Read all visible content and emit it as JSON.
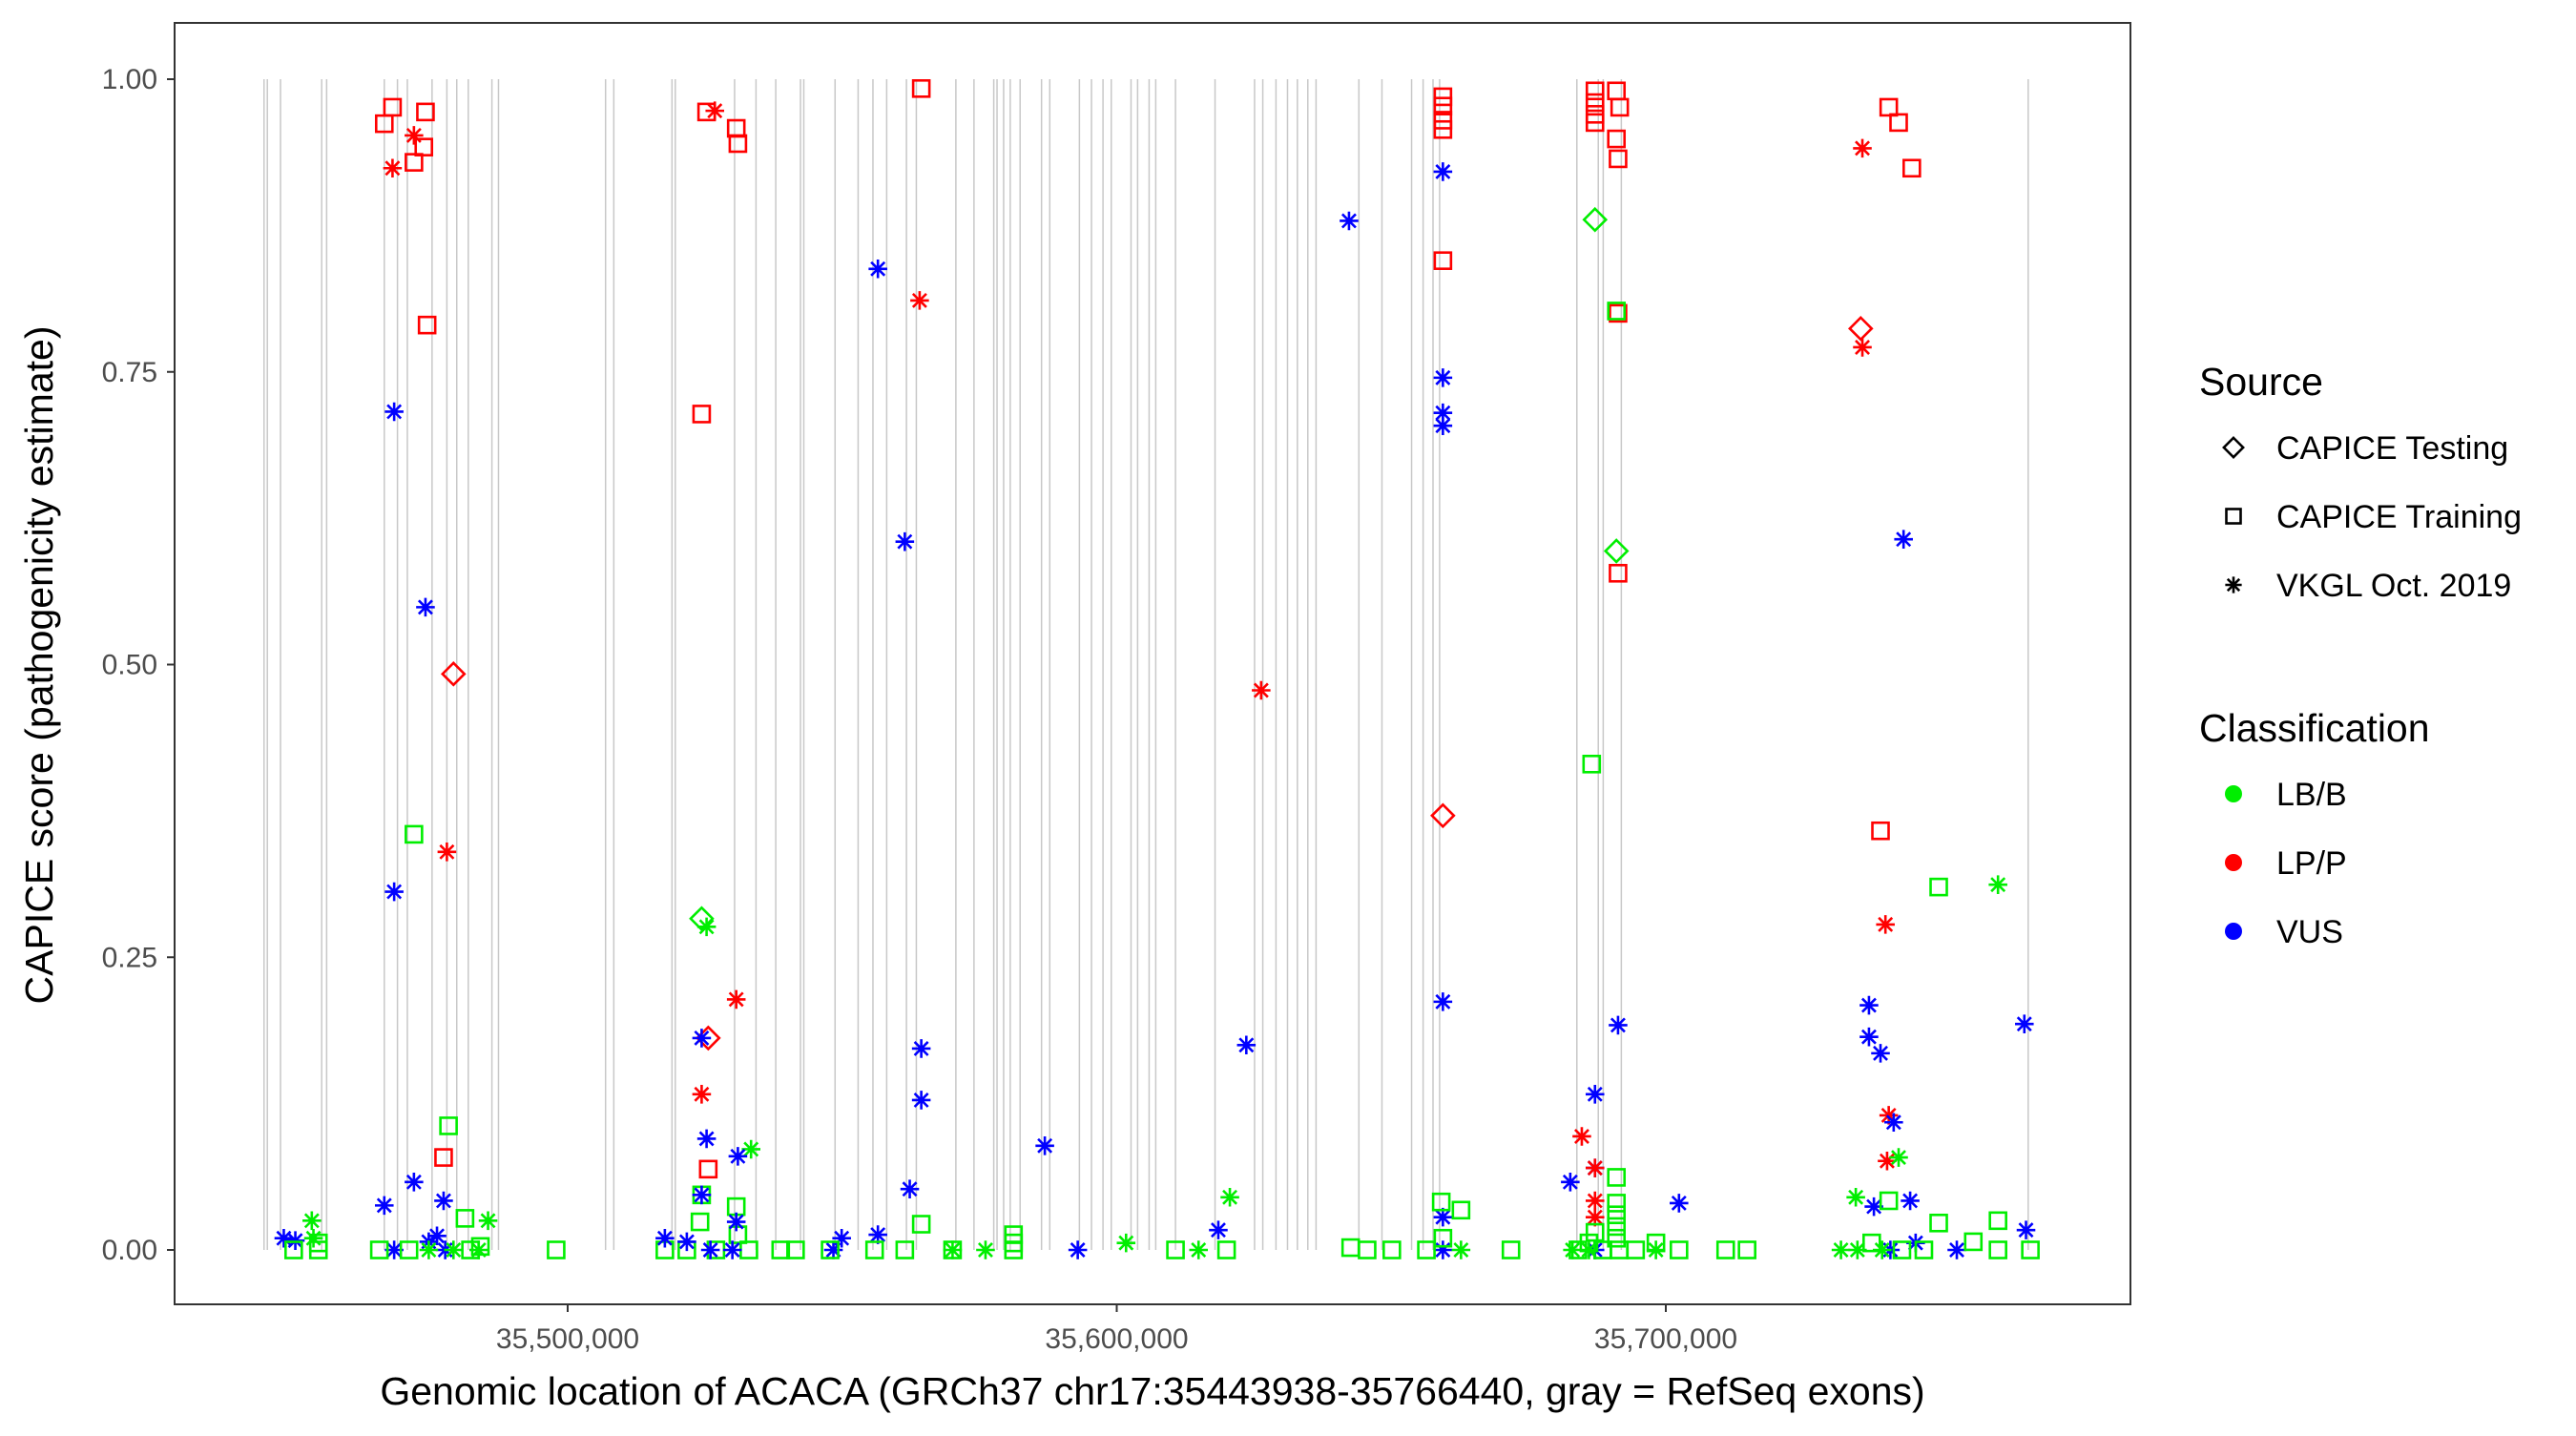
{
  "chart_data": {
    "type": "scatter",
    "title": "",
    "xlabel": "Genomic location of ACACA (GRCh37 chr17:35443938-35766440, gray = RefSeq exons)",
    "ylabel": "CAPICE score (pathogenicity estimate)",
    "xlim_kb": [
      35443.938,
      35766.44
    ],
    "ylim": [
      0,
      1
    ],
    "x_ticks": [
      {
        "value": 35500,
        "label": "35,500,000"
      },
      {
        "value": 35600,
        "label": "35,600,000"
      },
      {
        "value": 35700,
        "label": "35,700,000"
      }
    ],
    "y_ticks": [
      {
        "value": 0,
        "label": "0.00"
      },
      {
        "value": 0.25,
        "label": "0.25"
      },
      {
        "value": 0.5,
        "label": "0.50"
      },
      {
        "value": 0.75,
        "label": "0.75"
      },
      {
        "value": 1,
        "label": "1.00"
      }
    ],
    "grid": false,
    "legend_placement": "right",
    "legend": {
      "source_title": "Source",
      "sources": [
        {
          "key": "T",
          "label": "CAPICE Testing",
          "shape": "diamond"
        },
        {
          "key": "R",
          "label": "CAPICE Training",
          "shape": "square"
        },
        {
          "key": "V",
          "label": "VKGL Oct. 2019",
          "shape": "asterisk"
        }
      ],
      "class_title": "Classification",
      "classes": [
        {
          "key": "B",
          "label": "LB/B",
          "color": "#00EE00"
        },
        {
          "key": "P",
          "label": "LP/P",
          "color": "#FF0000"
        },
        {
          "key": "U",
          "label": "VUS",
          "color": "#0000FF"
        }
      ]
    },
    "exons_kb": [
      35444.7,
      35445.3,
      35447.7,
      35455.2,
      35456.1,
      35466.6,
      35469.0,
      35470.8,
      35475.3,
      35478.0,
      35479.8,
      35481.9,
      35486.2,
      35487.4,
      35506.9,
      35508.4,
      35519.0,
      35519.6,
      35530.4,
      35534.3,
      35537.9,
      35542.4,
      35543.0,
      35548.7,
      35552.9,
      35555.6,
      35558.1,
      35561.7,
      35563.5,
      35570.7,
      35574.0,
      35577.6,
      35578.2,
      35579.4,
      35580.6,
      35582.4,
      35586.3,
      35587.8,
      35593.2,
      35595.4,
      35597.5,
      35599.0,
      35602.6,
      35603.8,
      35605.9,
      35607.1,
      35610.7,
      35617.9,
      35625.1,
      35626.6,
      35629.0,
      35631.1,
      35632.9,
      35634.8,
      35636.3,
      35644.1,
      35648.3,
      35653.7,
      35655.8,
      35657.6,
      35658.8,
      35683.8,
      35687.7,
      35688.6,
      35691.9,
      35766.0
    ],
    "points_fields": [
      "x_kb",
      "score",
      "source",
      "classification"
    ],
    "points": [
      [
        35466.6,
        0.962,
        "R",
        "P"
      ],
      [
        35468.1,
        0.976,
        "R",
        "P"
      ],
      [
        35474.1,
        0.972,
        "R",
        "P"
      ],
      [
        35472.0,
        0.929,
        "R",
        "P"
      ],
      [
        35473.8,
        0.942,
        "R",
        "P"
      ],
      [
        35474.4,
        0.79,
        "R",
        "P"
      ],
      [
        35477.4,
        0.079,
        "R",
        "P"
      ],
      [
        35468.1,
        0.924,
        "V",
        "P"
      ],
      [
        35472.0,
        0.952,
        "V",
        "P"
      ],
      [
        35478.0,
        0.34,
        "V",
        "P"
      ],
      [
        35479.2,
        0.492,
        "T",
        "P"
      ],
      [
        35468.4,
        0.716,
        "V",
        "U"
      ],
      [
        35474.1,
        0.549,
        "V",
        "U"
      ],
      [
        35468.4,
        0.306,
        "V",
        "U"
      ],
      [
        35472.0,
        0.058,
        "V",
        "U"
      ],
      [
        35466.6,
        0.038,
        "V",
        "U"
      ],
      [
        35477.4,
        0.042,
        "V",
        "U"
      ],
      [
        35448.3,
        0.01,
        "V",
        "U"
      ],
      [
        35450.4,
        0.008,
        "V",
        "U"
      ],
      [
        35468.4,
        0.0,
        "V",
        "U"
      ],
      [
        35474.7,
        0.007,
        "V",
        "U"
      ],
      [
        35476.2,
        0.012,
        "V",
        "U"
      ],
      [
        35477.7,
        0.0,
        "V",
        "U"
      ],
      [
        35472.0,
        0.355,
        "R",
        "B"
      ],
      [
        35478.3,
        0.106,
        "R",
        "B"
      ],
      [
        35481.3,
        0.027,
        "R",
        "B"
      ],
      [
        35450.1,
        0.0,
        "R",
        "B"
      ],
      [
        35454.6,
        0.0,
        "R",
        "B"
      ],
      [
        35465.7,
        0.0,
        "R",
        "B"
      ],
      [
        35471.1,
        0.0,
        "R",
        "B"
      ],
      [
        35482.3,
        0.0,
        "R",
        "B"
      ],
      [
        35484.1,
        0.003,
        "R",
        "B"
      ],
      [
        35497.9,
        0.0,
        "R",
        "B"
      ],
      [
        35454.6,
        0.006,
        "R",
        "B"
      ],
      [
        35453.4,
        0.025,
        "V",
        "B"
      ],
      [
        35485.5,
        0.025,
        "V",
        "B"
      ],
      [
        35453.7,
        0.01,
        "V",
        "B"
      ],
      [
        35474.7,
        0.0,
        "V",
        "B"
      ],
      [
        35479.2,
        0.0,
        "V",
        "B"
      ],
      [
        35483.8,
        0.0,
        "V",
        "B"
      ],
      [
        35525.3,
        0.972,
        "R",
        "P"
      ],
      [
        35530.7,
        0.958,
        "R",
        "P"
      ],
      [
        35531.0,
        0.945,
        "R",
        "P"
      ],
      [
        35524.4,
        0.714,
        "R",
        "P"
      ],
      [
        35525.6,
        0.069,
        "R",
        "P"
      ],
      [
        35564.4,
        0.992,
        "R",
        "P"
      ],
      [
        35526.8,
        0.973,
        "V",
        "P"
      ],
      [
        35530.7,
        0.214,
        "V",
        "P"
      ],
      [
        35524.4,
        0.133,
        "V",
        "P"
      ],
      [
        35564.1,
        0.811,
        "V",
        "P"
      ],
      [
        35626.3,
        0.478,
        "V",
        "P"
      ],
      [
        35525.6,
        0.181,
        "T",
        "P"
      ],
      [
        35524.4,
        0.283,
        "T",
        "B"
      ],
      [
        35525.3,
        0.276,
        "V",
        "B"
      ],
      [
        35533.4,
        0.086,
        "V",
        "B"
      ],
      [
        35530.7,
        0.037,
        "R",
        "B"
      ],
      [
        35524.4,
        0.047,
        "R",
        "B"
      ],
      [
        35524.1,
        0.024,
        "R",
        "B"
      ],
      [
        35531.0,
        0.013,
        "R",
        "B"
      ],
      [
        35521.7,
        0.0,
        "R",
        "B"
      ],
      [
        35527.0,
        0.0,
        "R",
        "B"
      ],
      [
        35533.0,
        0.0,
        "R",
        "B"
      ],
      [
        35517.7,
        0.0,
        "R",
        "B"
      ],
      [
        35524.4,
        0.181,
        "V",
        "U"
      ],
      [
        35525.3,
        0.095,
        "V",
        "U"
      ],
      [
        35531.0,
        0.08,
        "V",
        "U"
      ],
      [
        35524.4,
        0.047,
        "V",
        "U"
      ],
      [
        35530.7,
        0.024,
        "V",
        "U"
      ],
      [
        35517.7,
        0.01,
        "V",
        "U"
      ],
      [
        35521.7,
        0.007,
        "V",
        "U"
      ],
      [
        35526.0,
        0.0,
        "V",
        "U"
      ],
      [
        35530.0,
        0.0,
        "V",
        "U"
      ],
      [
        35556.5,
        0.838,
        "V",
        "U"
      ],
      [
        35561.4,
        0.605,
        "V",
        "U"
      ],
      [
        35564.4,
        0.172,
        "V",
        "U"
      ],
      [
        35564.4,
        0.128,
        "V",
        "U"
      ],
      [
        35562.3,
        0.052,
        "V",
        "U"
      ],
      [
        35556.5,
        0.013,
        "V",
        "U"
      ],
      [
        35549.9,
        0.01,
        "V",
        "U"
      ],
      [
        35548.4,
        0.0,
        "V",
        "U"
      ],
      [
        35592.9,
        0.0,
        "V",
        "U"
      ],
      [
        35586.9,
        0.089,
        "V",
        "U"
      ],
      [
        35623.6,
        0.175,
        "V",
        "U"
      ],
      [
        35618.5,
        0.017,
        "V",
        "U"
      ],
      [
        35642.3,
        0.879,
        "V",
        "U"
      ],
      [
        35564.4,
        0.022,
        "R",
        "B"
      ],
      [
        35581.2,
        0.013,
        "R",
        "B"
      ],
      [
        35581.2,
        0.006,
        "R",
        "B"
      ],
      [
        35581.2,
        0.0,
        "R",
        "B"
      ],
      [
        35601.7,
        0.006,
        "V",
        "B"
      ],
      [
        35620.6,
        0.045,
        "V",
        "B"
      ],
      [
        35614.9,
        0.0,
        "V",
        "B"
      ],
      [
        35610.7,
        0.0,
        "R",
        "B"
      ],
      [
        35620.0,
        0.0,
        "R",
        "B"
      ],
      [
        35570.1,
        0.0,
        "V",
        "B"
      ],
      [
        35576.1,
        0.0,
        "V",
        "B"
      ],
      [
        35538.8,
        0.0,
        "R",
        "B"
      ],
      [
        35541.5,
        0.0,
        "R",
        "B"
      ],
      [
        35547.8,
        0.0,
        "R",
        "B"
      ],
      [
        35555.9,
        0.0,
        "R",
        "B"
      ],
      [
        35561.4,
        0.0,
        "R",
        "B"
      ],
      [
        35570.1,
        0.0,
        "R",
        "B"
      ],
      [
        35659.4,
        0.985,
        "R",
        "P"
      ],
      [
        35659.4,
        0.977,
        "R",
        "P"
      ],
      [
        35659.4,
        0.965,
        "R",
        "P"
      ],
      [
        35659.4,
        0.957,
        "R",
        "P"
      ],
      [
        35659.4,
        0.845,
        "R",
        "P"
      ],
      [
        35659.4,
        0.371,
        "T",
        "P"
      ],
      [
        35659.4,
        0.921,
        "V",
        "U"
      ],
      [
        35659.4,
        0.745,
        "V",
        "U"
      ],
      [
        35659.4,
        0.715,
        "V",
        "U"
      ],
      [
        35659.4,
        0.704,
        "V",
        "U"
      ],
      [
        35659.4,
        0.212,
        "V",
        "U"
      ],
      [
        35659.4,
        0.028,
        "V",
        "U"
      ],
      [
        35659.4,
        0.0,
        "V",
        "U"
      ],
      [
        35659.1,
        0.041,
        "R",
        "B"
      ],
      [
        35662.7,
        0.034,
        "R",
        "B"
      ],
      [
        35659.4,
        0.01,
        "R",
        "B"
      ],
      [
        35656.4,
        0.0,
        "R",
        "B"
      ],
      [
        35645.6,
        0.0,
        "R",
        "B"
      ],
      [
        35650.1,
        0.0,
        "R",
        "B"
      ],
      [
        35642.6,
        0.002,
        "R",
        "B"
      ],
      [
        35671.8,
        0.0,
        "R",
        "B"
      ],
      [
        35662.7,
        0.0,
        "V",
        "B"
      ],
      [
        35687.1,
        0.99,
        "R",
        "P"
      ],
      [
        35687.1,
        0.98,
        "R",
        "P"
      ],
      [
        35687.1,
        0.97,
        "R",
        "P"
      ],
      [
        35687.1,
        0.963,
        "R",
        "P"
      ],
      [
        35691.0,
        0.99,
        "R",
        "P"
      ],
      [
        35691.6,
        0.976,
        "R",
        "P"
      ],
      [
        35691.0,
        0.949,
        "R",
        "P"
      ],
      [
        35691.3,
        0.932,
        "R",
        "P"
      ],
      [
        35691.3,
        0.8,
        "R",
        "P"
      ],
      [
        35691.3,
        0.578,
        "R",
        "P"
      ],
      [
        35687.1,
        0.88,
        "T",
        "B"
      ],
      [
        35691.0,
        0.597,
        "T",
        "B"
      ],
      [
        35691.0,
        0.802,
        "R",
        "B"
      ],
      [
        35686.5,
        0.415,
        "R",
        "B"
      ],
      [
        35687.1,
        0.133,
        "V",
        "U"
      ],
      [
        35691.3,
        0.192,
        "V",
        "U"
      ],
      [
        35682.6,
        0.058,
        "V",
        "U"
      ],
      [
        35687.1,
        0.07,
        "V",
        "U"
      ],
      [
        35702.4,
        0.04,
        "V",
        "U"
      ],
      [
        35687.1,
        0.0,
        "V",
        "U"
      ],
      [
        35684.7,
        0.097,
        "V",
        "P"
      ],
      [
        35687.1,
        0.042,
        "V",
        "P"
      ],
      [
        35687.1,
        0.028,
        "V",
        "P"
      ],
      [
        35687.1,
        0.07,
        "V",
        "P"
      ],
      [
        35691.0,
        0.062,
        "R",
        "B"
      ],
      [
        35691.0,
        0.04,
        "R",
        "B"
      ],
      [
        35691.0,
        0.03,
        "R",
        "B"
      ],
      [
        35691.0,
        0.02,
        "R",
        "B"
      ],
      [
        35691.0,
        0.01,
        "R",
        "B"
      ],
      [
        35687.1,
        0.015,
        "R",
        "B"
      ],
      [
        35686.0,
        0.006,
        "R",
        "B"
      ],
      [
        35684.0,
        0.0,
        "R",
        "B"
      ],
      [
        35688.5,
        0.0,
        "R",
        "B"
      ],
      [
        35691.5,
        0.0,
        "R",
        "B"
      ],
      [
        35694.5,
        0.0,
        "R",
        "B"
      ],
      [
        35698.2,
        0.006,
        "R",
        "B"
      ],
      [
        35702.4,
        0.0,
        "R",
        "B"
      ],
      [
        35710.9,
        0.0,
        "R",
        "B"
      ],
      [
        35714.8,
        0.0,
        "R",
        "B"
      ],
      [
        35683.0,
        0.0,
        "V",
        "B"
      ],
      [
        35686.0,
        0.0,
        "V",
        "B"
      ],
      [
        35698.2,
        0.0,
        "V",
        "B"
      ],
      [
        35740.6,
        0.976,
        "R",
        "P"
      ],
      [
        35742.4,
        0.963,
        "R",
        "P"
      ],
      [
        35744.8,
        0.924,
        "R",
        "P"
      ],
      [
        35739.1,
        0.358,
        "R",
        "P"
      ],
      [
        35735.8,
        0.941,
        "V",
        "P"
      ],
      [
        35735.8,
        0.771,
        "V",
        "P"
      ],
      [
        35740.0,
        0.278,
        "V",
        "P"
      ],
      [
        35740.6,
        0.115,
        "V",
        "P"
      ],
      [
        35740.3,
        0.076,
        "V",
        "P"
      ],
      [
        35735.5,
        0.787,
        "T",
        "P"
      ],
      [
        35743.3,
        0.607,
        "V",
        "U"
      ],
      [
        35737.0,
        0.209,
        "V",
        "U"
      ],
      [
        35737.0,
        0.182,
        "V",
        "U"
      ],
      [
        35739.1,
        0.168,
        "V",
        "U"
      ],
      [
        35741.5,
        0.109,
        "V",
        "U"
      ],
      [
        35737.9,
        0.037,
        "V",
        "U"
      ],
      [
        35744.5,
        0.042,
        "V",
        "U"
      ],
      [
        35765.3,
        0.193,
        "V",
        "U"
      ],
      [
        35765.6,
        0.017,
        "V",
        "U"
      ],
      [
        35753.0,
        0.0,
        "V",
        "U"
      ],
      [
        35745.5,
        0.006,
        "V",
        "U"
      ],
      [
        35740.9,
        0.0,
        "V",
        "U"
      ],
      [
        35749.7,
        0.31,
        "R",
        "B"
      ],
      [
        35760.5,
        0.312,
        "V",
        "B"
      ],
      [
        35742.4,
        0.079,
        "V",
        "B"
      ],
      [
        35734.6,
        0.045,
        "V",
        "B"
      ],
      [
        35740.6,
        0.042,
        "R",
        "B"
      ],
      [
        35749.7,
        0.023,
        "R",
        "B"
      ],
      [
        35760.5,
        0.025,
        "R",
        "B"
      ],
      [
        35766.4,
        0.0,
        "R",
        "B"
      ],
      [
        35756.0,
        0.007,
        "R",
        "B"
      ],
      [
        35760.5,
        0.0,
        "R",
        "B"
      ],
      [
        35731.9,
        0.0,
        "V",
        "B"
      ],
      [
        35734.9,
        0.0,
        "V",
        "B"
      ],
      [
        35739.4,
        0.0,
        "V",
        "B"
      ],
      [
        35737.5,
        0.006,
        "R",
        "B"
      ],
      [
        35743.0,
        0.0,
        "R",
        "B"
      ],
      [
        35747.0,
        0.0,
        "R",
        "B"
      ]
    ]
  }
}
